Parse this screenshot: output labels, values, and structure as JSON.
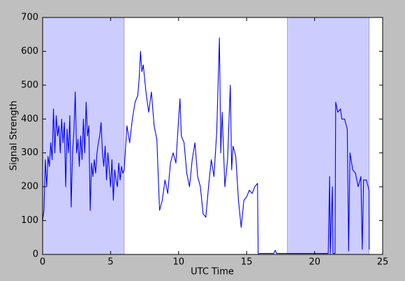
{
  "chart_data": {
    "type": "line",
    "xlabel": "UTC Time",
    "ylabel": "Signal Strength",
    "xlim": [
      0,
      25
    ],
    "ylim": [
      0,
      700
    ],
    "xticks": [
      0,
      5,
      10,
      15,
      20,
      25
    ],
    "yticks": [
      0,
      100,
      200,
      300,
      400,
      500,
      600,
      700
    ],
    "spans": [
      [
        0,
        6
      ],
      [
        18,
        24
      ]
    ],
    "span_color": "#ccccff",
    "series": [
      {
        "color": "#0000ff",
        "x": [
          0,
          0.1,
          0.2,
          0.3,
          0.4,
          0.5,
          0.6,
          0.7,
          0.8,
          0.9,
          1.0,
          1.1,
          1.2,
          1.3,
          1.4,
          1.5,
          1.6,
          1.7,
          1.8,
          1.9,
          2.0,
          2.1,
          2.2,
          2.3,
          2.4,
          2.5,
          2.6,
          2.7,
          2.8,
          2.9,
          3.0,
          3.1,
          3.2,
          3.3,
          3.4,
          3.5,
          3.6,
          3.7,
          3.8,
          3.9,
          4.0,
          4.1,
          4.2,
          4.3,
          4.4,
          4.5,
          4.6,
          4.7,
          4.8,
          4.9,
          5.0,
          5.1,
          5.2,
          5.3,
          5.4,
          5.5,
          5.6,
          5.7,
          5.8,
          5.9,
          6.0,
          6.2,
          6.4,
          6.6,
          6.8,
          7.0,
          7.1,
          7.2,
          7.3,
          7.4,
          7.6,
          7.8,
          8.0,
          8.2,
          8.4,
          8.6,
          8.8,
          9.0,
          9.2,
          9.4,
          9.6,
          9.8,
          10.0,
          10.1,
          10.2,
          10.4,
          10.6,
          10.8,
          11.0,
          11.2,
          11.4,
          11.6,
          11.8,
          12.0,
          12.2,
          12.4,
          12.6,
          12.8,
          13.0,
          13.1,
          13.2,
          13.4,
          13.6,
          13.8,
          13.9,
          14.0,
          14.2,
          14.4,
          14.6,
          14.8,
          15.0,
          15.2,
          15.4,
          15.6,
          15.8,
          15.85,
          16.0,
          17.0,
          17.1,
          17.2,
          18,
          19,
          20,
          21,
          21.1,
          21.15,
          21.3,
          21.35,
          21.5,
          21.55,
          21.7,
          21.9,
          22.0,
          22.2,
          22.4,
          22.5,
          22.6,
          22.8,
          23.0,
          23.2,
          23.4,
          23.5,
          23.6,
          23.8,
          24.0,
          24.01
        ],
        "values": [
          100,
          130,
          280,
          200,
          290,
          260,
          330,
          280,
          430,
          300,
          410,
          350,
          380,
          300,
          400,
          330,
          390,
          200,
          370,
          300,
          410,
          140,
          300,
          360,
          480,
          300,
          340,
          260,
          350,
          280,
          400,
          300,
          450,
          350,
          380,
          130,
          270,
          230,
          280,
          240,
          300,
          330,
          350,
          390,
          300,
          260,
          320,
          220,
          300,
          250,
          200,
          280,
          160,
          250,
          220,
          200,
          270,
          220,
          260,
          240,
          250,
          380,
          330,
          400,
          450,
          470,
          520,
          600,
          540,
          560,
          480,
          420,
          480,
          380,
          340,
          130,
          160,
          220,
          180,
          270,
          300,
          270,
          400,
          460,
          350,
          330,
          240,
          200,
          280,
          330,
          230,
          200,
          120,
          110,
          200,
          280,
          230,
          360,
          640,
          300,
          420,
          200,
          280,
          500,
          250,
          320,
          290,
          160,
          80,
          160,
          170,
          190,
          180,
          200,
          210,
          0,
          3,
          3,
          12,
          3,
          3,
          3,
          3,
          3,
          230,
          3,
          200,
          3,
          3,
          450,
          420,
          430,
          400,
          400,
          370,
          10,
          300,
          250,
          240,
          200,
          230,
          15,
          220,
          220,
          190,
          15
        ]
      }
    ]
  }
}
